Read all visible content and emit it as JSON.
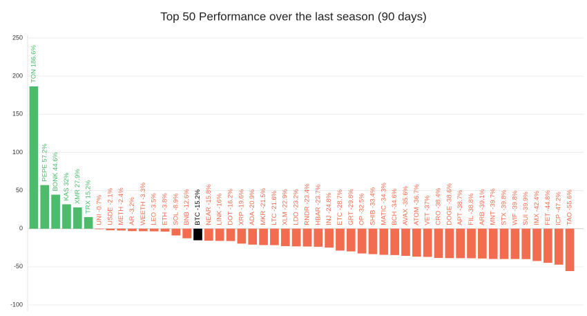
{
  "chart_data": {
    "type": "bar",
    "title": "Top 50 Performance over the last season (90 days)",
    "values": [
      186.6,
      57.2,
      44.6,
      32,
      27.9,
      15.2,
      -0.7,
      -2.1,
      -2.4,
      -3.2,
      -3.3,
      -3.5,
      -3.8,
      -8.9,
      -12.6,
      -15.2,
      -15.8,
      -16,
      -16.2,
      -19.6,
      -20.9,
      -21.5,
      -21.6,
      -22.9,
      -23.2,
      -23.4,
      -23.7,
      -24.8,
      -28.7,
      -29.8,
      -32.5,
      -33.4,
      -34.3,
      -34.6,
      -35.6,
      -36.7,
      -37,
      -38.4,
      -38.6,
      -38.7,
      -38.8,
      -39.1,
      -39.7,
      -39.8,
      -39.8,
      -39.9,
      -42.4,
      -44.8,
      -47.2,
      -55.6
    ],
    "value_labels": [
      "TON 186.6%",
      "PEPE 57.2%",
      "BONK 44.6%",
      "KAS 32%",
      "XMR 27.9%",
      "TRX 15.2%",
      "UNI -0.7%",
      "USDE -2.1%",
      "METH -2.4%",
      "AR -3.2%",
      "WEETH -3.3%",
      "LEO -3.5%",
      "ETH -3.8%",
      "SOL -8.9%",
      "BNB -12.6%",
      "BTC -15.2%",
      "NEAR -15.8%",
      "LINK -16%",
      "DOT -16.2%",
      "XRP -19.6%",
      "ADA -20.9%",
      "MKR -21.5%",
      "LTC -21.6%",
      "XLM -22.9%",
      "LDO -23.2%",
      "RNDR -23.4%",
      "HBAR -23.7%",
      "INJ -24.8%",
      "ETC -28.7%",
      "GRT -29.8%",
      "OP -32.5%",
      "SHIB -33.4%",
      "MATIC -34.3%",
      "BCH -34.6%",
      "AVAX -35.6%",
      "ATOM -36.7%",
      "VET -37%",
      "CRO -38.4%",
      "DOGE -38.6%",
      "APT -38.7%",
      "FIL -38.8%",
      "ARB -39.1%",
      "MNT -39.7%",
      "STX -39.8%",
      "WIF -39.8%",
      "SUI -39.9%",
      "IMX -42.4%",
      "FET -44.8%",
      "ICP -47.2%",
      "TAO -55.6%"
    ],
    "colors": [
      "#4cbb6b",
      "#4cbb6b",
      "#4cbb6b",
      "#4cbb6b",
      "#4cbb6b",
      "#4cbb6b",
      "#f26c4f",
      "#f26c4f",
      "#f26c4f",
      "#f26c4f",
      "#f26c4f",
      "#f26c4f",
      "#f26c4f",
      "#f26c4f",
      "#f26c4f",
      "#000000",
      "#f26c4f",
      "#f26c4f",
      "#f26c4f",
      "#f26c4f",
      "#f26c4f",
      "#f26c4f",
      "#f26c4f",
      "#f26c4f",
      "#f26c4f",
      "#f26c4f",
      "#f26c4f",
      "#f26c4f",
      "#f26c4f",
      "#f26c4f",
      "#f26c4f",
      "#f26c4f",
      "#f26c4f",
      "#f26c4f",
      "#f26c4f",
      "#f26c4f",
      "#f26c4f",
      "#f26c4f",
      "#f26c4f",
      "#f26c4f",
      "#f26c4f",
      "#f26c4f",
      "#f26c4f",
      "#f26c4f",
      "#f26c4f",
      "#f26c4f",
      "#f26c4f",
      "#f26c4f",
      "#f26c4f",
      "#f26c4f"
    ],
    "ylim": [
      -100,
      250
    ],
    "yticks": [
      -100,
      -50,
      0,
      50,
      100,
      150,
      200,
      250
    ],
    "grid": true
  }
}
